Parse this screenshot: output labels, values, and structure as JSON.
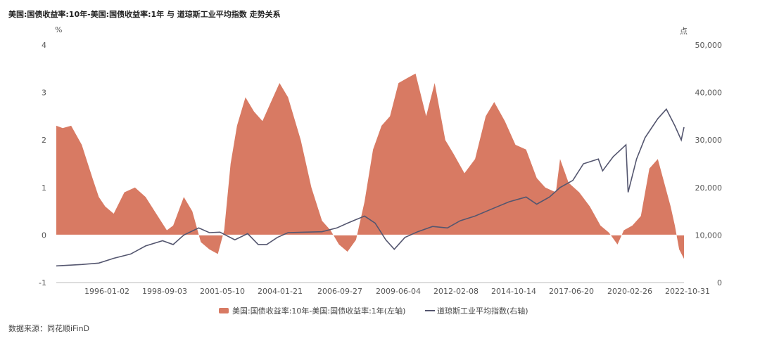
{
  "title": "美国:国债收益率:10年-美国:国债收益率:1年 与 道琼斯工业平均指数 走势关系",
  "source": "数据来源：同花顺iFinD",
  "colors": {
    "spread": "#d87a63",
    "dow": "#54566f",
    "axis": "#bbbbbb"
  },
  "chart_data": {
    "type": "area",
    "left_axis": {
      "unit": "%",
      "ylim": [
        -1,
        4
      ],
      "ticks": [
        "4",
        "3",
        "2",
        "1",
        "0",
        "-1"
      ]
    },
    "right_axis": {
      "unit": "点",
      "ylim": [
        0,
        50000
      ],
      "ticks": [
        "50,000",
        "40,000",
        "30,000",
        "20,000",
        "10,000",
        "0"
      ]
    },
    "x_ticks": [
      "1996-01-02",
      "1998-09-03",
      "2001-05-10",
      "2004-01-21",
      "2006-09-27",
      "2009-06-04",
      "2012-02-08",
      "2014-10-14",
      "2017-06-20",
      "2020-02-26",
      "2022-10-31"
    ],
    "x_range": [
      1993.3,
      2022.83
    ],
    "series": [
      {
        "name": "美国:国债收益率:10年-美国:国债收益率:1年(左轴)",
        "kind": "area",
        "axis": "left",
        "points": [
          [
            1993.3,
            2.3
          ],
          [
            1993.6,
            2.25
          ],
          [
            1994.0,
            2.3
          ],
          [
            1994.5,
            1.9
          ],
          [
            1995.0,
            1.2
          ],
          [
            1995.3,
            0.8
          ],
          [
            1995.6,
            0.6
          ],
          [
            1996.0,
            0.45
          ],
          [
            1996.5,
            0.9
          ],
          [
            1997.0,
            1.0
          ],
          [
            1997.5,
            0.8
          ],
          [
            1998.0,
            0.45
          ],
          [
            1998.5,
            0.1
          ],
          [
            1998.8,
            0.2
          ],
          [
            1999.3,
            0.8
          ],
          [
            1999.7,
            0.5
          ],
          [
            2000.1,
            -0.15
          ],
          [
            2000.5,
            -0.3
          ],
          [
            2000.9,
            -0.4
          ],
          [
            2001.2,
            0.1
          ],
          [
            2001.5,
            1.5
          ],
          [
            2001.8,
            2.3
          ],
          [
            2002.2,
            2.9
          ],
          [
            2002.6,
            2.6
          ],
          [
            2003.0,
            2.4
          ],
          [
            2003.5,
            2.9
          ],
          [
            2003.8,
            3.2
          ],
          [
            2004.2,
            2.9
          ],
          [
            2004.8,
            2.0
          ],
          [
            2005.3,
            1.0
          ],
          [
            2005.8,
            0.3
          ],
          [
            2006.2,
            0.1
          ],
          [
            2006.6,
            -0.2
          ],
          [
            2007.0,
            -0.35
          ],
          [
            2007.4,
            -0.1
          ],
          [
            2007.8,
            0.7
          ],
          [
            2008.2,
            1.8
          ],
          [
            2008.6,
            2.3
          ],
          [
            2009.0,
            2.5
          ],
          [
            2009.4,
            3.2
          ],
          [
            2009.8,
            3.3
          ],
          [
            2010.2,
            3.4
          ],
          [
            2010.7,
            2.5
          ],
          [
            2011.1,
            3.2
          ],
          [
            2011.6,
            2.0
          ],
          [
            2012.0,
            1.7
          ],
          [
            2012.5,
            1.3
          ],
          [
            2013.0,
            1.6
          ],
          [
            2013.5,
            2.5
          ],
          [
            2013.9,
            2.8
          ],
          [
            2014.4,
            2.4
          ],
          [
            2014.9,
            1.9
          ],
          [
            2015.4,
            1.8
          ],
          [
            2015.9,
            1.2
          ],
          [
            2016.3,
            1.0
          ],
          [
            2016.8,
            0.9
          ],
          [
            2017.0,
            1.6
          ],
          [
            2017.4,
            1.1
          ],
          [
            2017.9,
            0.9
          ],
          [
            2018.4,
            0.6
          ],
          [
            2018.9,
            0.2
          ],
          [
            2019.3,
            0.05
          ],
          [
            2019.7,
            -0.2
          ],
          [
            2020.0,
            0.1
          ],
          [
            2020.4,
            0.2
          ],
          [
            2020.8,
            0.4
          ],
          [
            2021.2,
            1.4
          ],
          [
            2021.6,
            1.6
          ],
          [
            2021.9,
            1.1
          ],
          [
            2022.2,
            0.6
          ],
          [
            2022.4,
            0.2
          ],
          [
            2022.6,
            -0.3
          ],
          [
            2022.83,
            -0.5
          ]
        ]
      },
      {
        "name": "道琼斯工业平均指数(右轴)",
        "kind": "line",
        "axis": "right",
        "points": [
          [
            1993.3,
            3500
          ],
          [
            1994.5,
            3800
          ],
          [
            1995.3,
            4100
          ],
          [
            1996.0,
            5100
          ],
          [
            1996.8,
            6000
          ],
          [
            1997.5,
            7700
          ],
          [
            1998.3,
            8800
          ],
          [
            1998.8,
            8000
          ],
          [
            1999.3,
            10000
          ],
          [
            2000.0,
            11500
          ],
          [
            2000.5,
            10500
          ],
          [
            2001.0,
            10600
          ],
          [
            2001.7,
            9000
          ],
          [
            2002.3,
            10300
          ],
          [
            2002.8,
            8000
          ],
          [
            2003.2,
            8000
          ],
          [
            2003.7,
            9500
          ],
          [
            2004.2,
            10500
          ],
          [
            2005.0,
            10600
          ],
          [
            2005.8,
            10700
          ],
          [
            2006.5,
            11500
          ],
          [
            2007.0,
            12500
          ],
          [
            2007.8,
            14000
          ],
          [
            2008.3,
            12500
          ],
          [
            2008.8,
            9000
          ],
          [
            2009.2,
            7000
          ],
          [
            2009.7,
            9500
          ],
          [
            2010.3,
            10700
          ],
          [
            2011.0,
            11800
          ],
          [
            2011.7,
            11500
          ],
          [
            2012.3,
            13000
          ],
          [
            2013.0,
            14000
          ],
          [
            2013.8,
            15500
          ],
          [
            2014.6,
            17000
          ],
          [
            2015.4,
            18000
          ],
          [
            2015.9,
            16500
          ],
          [
            2016.5,
            18000
          ],
          [
            2017.0,
            20000
          ],
          [
            2017.6,
            21500
          ],
          [
            2018.1,
            25000
          ],
          [
            2018.8,
            26000
          ],
          [
            2019.0,
            23500
          ],
          [
            2019.5,
            26500
          ],
          [
            2020.1,
            29000
          ],
          [
            2020.2,
            19000
          ],
          [
            2020.6,
            26000
          ],
          [
            2021.0,
            30500
          ],
          [
            2021.6,
            34500
          ],
          [
            2022.0,
            36500
          ],
          [
            2022.4,
            33000
          ],
          [
            2022.7,
            30000
          ],
          [
            2022.83,
            32700
          ]
        ]
      }
    ]
  }
}
